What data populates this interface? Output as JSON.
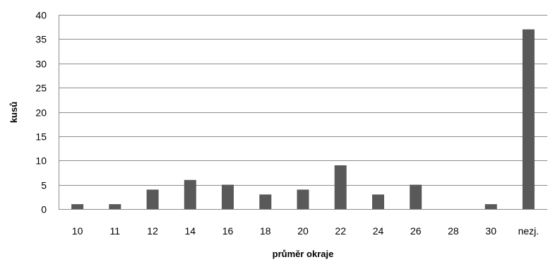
{
  "chart_data": {
    "type": "bar",
    "title": "",
    "xlabel": "průměr okraje",
    "ylabel": "kusů",
    "categories": [
      "10",
      "11",
      "12",
      "14",
      "16",
      "18",
      "20",
      "22",
      "24",
      "26",
      "28",
      "30",
      "nezj."
    ],
    "values": [
      1,
      1,
      4,
      6,
      5,
      3,
      4,
      9,
      3,
      5,
      0,
      1,
      37
    ],
    "ylim": [
      0,
      40
    ],
    "yticks": [
      0,
      5,
      10,
      15,
      20,
      25,
      30,
      35,
      40
    ],
    "grid": true,
    "legend": "none",
    "bar_color": "#595959",
    "grid_color": "#8c8c8c"
  }
}
